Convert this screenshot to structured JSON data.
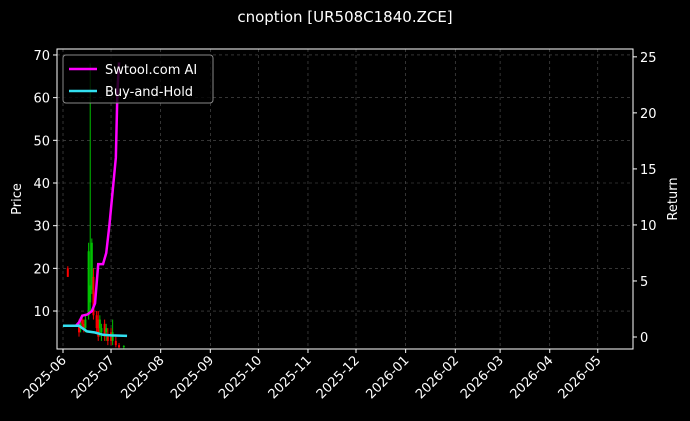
{
  "chart_data": {
    "type": "candlestick",
    "title": "cnoption [UR508C1840.ZCE]",
    "ylabel": "Price",
    "y2label": "Return",
    "legend": "upper left",
    "grid": true,
    "up_color": "#00c000",
    "down_color": "#ff0000",
    "xlim": [
      -3.75,
      356
    ],
    "xticks": [
      {
        "value": 0,
        "label": "2025-06"
      },
      {
        "value": 30,
        "label": "2025-07"
      },
      {
        "value": 61,
        "label": "2025-08"
      },
      {
        "value": 92,
        "label": "2025-09"
      },
      {
        "value": 122,
        "label": "2025-10"
      },
      {
        "value": 153,
        "label": "2025-11"
      },
      {
        "value": 183,
        "label": "2025-12"
      },
      {
        "value": 214,
        "label": "2026-01"
      },
      {
        "value": 245,
        "label": "2026-02"
      },
      {
        "value": 273,
        "label": "2026-03"
      },
      {
        "value": 304,
        "label": "2026-04"
      },
      {
        "value": 334,
        "label": "2026-05"
      }
    ],
    "ylim": [
      1.1,
      71.4
    ],
    "yticks": [
      10,
      20,
      30,
      40,
      50,
      60,
      70
    ],
    "y2lim": [
      -1.07,
      25.7
    ],
    "y2ticks": [
      0,
      5,
      10,
      15,
      20,
      25
    ],
    "candles": {
      "x": [
        3,
        10,
        11,
        12,
        13,
        14,
        16,
        17,
        18,
        19,
        21,
        22,
        23,
        24,
        26,
        27,
        28,
        30,
        31,
        33,
        35,
        38
      ],
      "open": [
        20,
        7,
        6,
        8,
        7,
        6,
        9,
        12,
        15,
        18,
        9,
        8,
        6,
        5,
        7,
        5,
        4,
        5,
        3,
        3,
        2,
        1.6
      ],
      "high": [
        20.5,
        8,
        8.5,
        9,
        8,
        9,
        26,
        68,
        27,
        20,
        10,
        10,
        9,
        7,
        8,
        7,
        6,
        6,
        8,
        4,
        2.5,
        2
      ],
      "low": [
        18,
        4,
        5,
        6,
        5,
        5,
        8,
        10,
        14,
        8,
        5,
        3,
        4,
        3,
        3,
        3,
        2,
        2,
        2,
        1.5,
        1.3,
        1.2
      ],
      "close": [
        18,
        5,
        7,
        7,
        6,
        8,
        24,
        16,
        26,
        9,
        6,
        4,
        8,
        6,
        4,
        6,
        3,
        3,
        5,
        2,
        1.5,
        1.8
      ]
    },
    "series": [
      {
        "name": "Swtool.com AI",
        "color": "#ff00ff",
        "axis": "y2",
        "x": [
          0,
          8,
          10,
          12,
          15,
          18,
          20,
          22,
          25,
          27,
          29,
          31,
          33,
          34,
          35
        ],
        "values": [
          1,
          1,
          1.3,
          1.9,
          2.0,
          2.3,
          3,
          6.5,
          6.5,
          7.5,
          10,
          13,
          16,
          22,
          24.5
        ]
      },
      {
        "name": "Buy-and-Hold",
        "color": "#33e0f0",
        "axis": "y2",
        "x": [
          0,
          10,
          15,
          20,
          25,
          30,
          40
        ],
        "values": [
          1,
          1,
          0.5,
          0.4,
          0.2,
          0.15,
          0.1
        ]
      }
    ]
  }
}
